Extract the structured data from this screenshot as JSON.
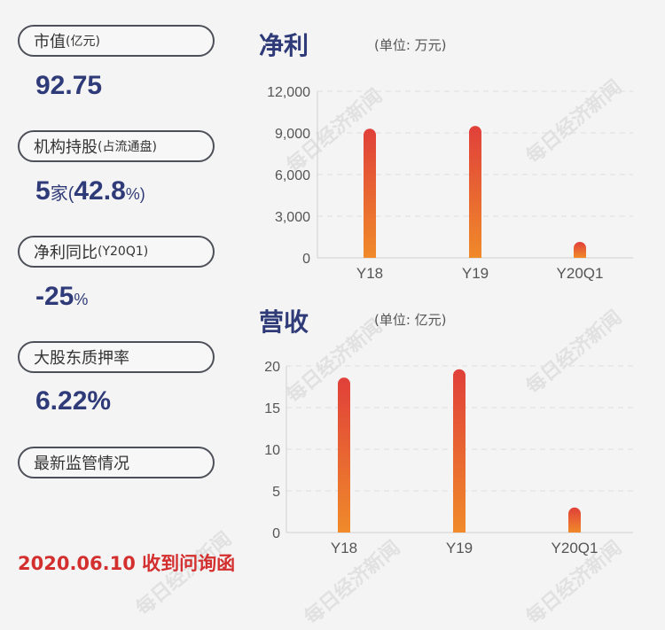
{
  "sidebar": {
    "market_value": {
      "label": "市值",
      "unit": "(亿元)",
      "value": "92.75"
    },
    "institutions": {
      "label": "机构持股",
      "note": "(占流通盘)",
      "count": "5",
      "count_unit": "家",
      "paren_open": "(",
      "pct": "42.8",
      "pct_sign": "%)"
    },
    "profit_yoy": {
      "label": "净利同比",
      "note": "(Y20Q1)",
      "value": "-25",
      "pct_sign": "%"
    },
    "pledge": {
      "label": "大股东质押率",
      "value": "6.22%"
    },
    "regulation": {
      "label": "最新监管情况"
    },
    "notice": "2020.06.10 收到问询函"
  },
  "watermark": "每日经济新闻",
  "chart_data": [
    {
      "type": "bar",
      "title": "净利",
      "unit_label": "(单位: 万元)",
      "categories": [
        "Y18",
        "Y19",
        "Y20Q1"
      ],
      "values": [
        9300,
        9500,
        1150
      ],
      "yticks": [
        "0",
        "3,000",
        "6,000",
        "9,000",
        "12,000"
      ],
      "ylim": [
        0,
        12000
      ],
      "grid": true,
      "colors": {
        "top": "#e0403a",
        "bottom": "#f08a2a"
      }
    },
    {
      "type": "bar",
      "title": "营收",
      "unit_label": "(单位: 亿元)",
      "categories": [
        "Y18",
        "Y19",
        "Y20Q1"
      ],
      "values": [
        18.6,
        19.6,
        3.0
      ],
      "yticks": [
        "0",
        "5",
        "10",
        "15",
        "20"
      ],
      "ylim": [
        0,
        20
      ],
      "grid": true,
      "colors": {
        "top": "#e0403a",
        "bottom": "#f08a2a"
      }
    }
  ]
}
